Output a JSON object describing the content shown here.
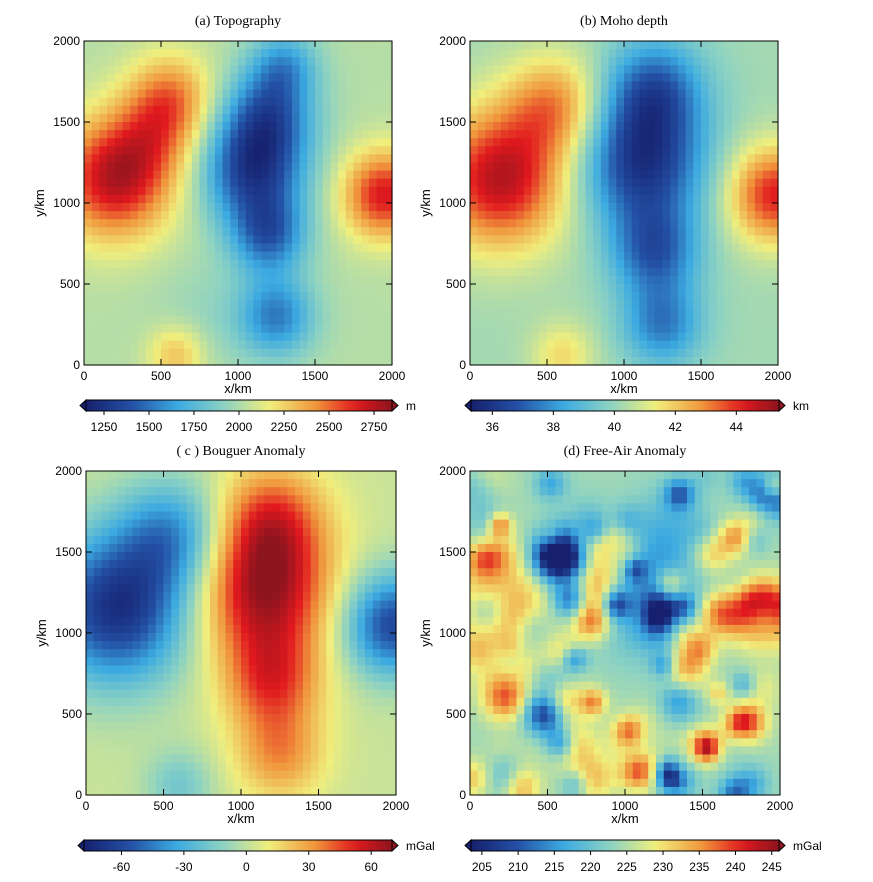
{
  "chart_data": [
    {
      "type": "heatmap",
      "title": "(a) Topography",
      "xlabel": "x/km",
      "ylabel": "y/km",
      "xlim": [
        0,
        2000
      ],
      "ylim": [
        0,
        2000
      ],
      "xticks": [
        "0",
        "500",
        "1000",
        "1500",
        "2000"
      ],
      "yticks": [
        "0",
        "500",
        "1000",
        "1500",
        "2000"
      ],
      "colorbar": {
        "unit": "m",
        "range": [
          1150,
          2850
        ],
        "ticks": [
          1250,
          1500,
          1750,
          2000,
          2250,
          2500,
          2750
        ]
      },
      "field": {
        "base": 2020,
        "blobs": [
          [
            200,
            1150,
            720,
            260
          ],
          [
            560,
            1650,
            420,
            190
          ],
          [
            450,
            1400,
            250,
            200
          ],
          [
            1100,
            1200,
            -700,
            230
          ],
          [
            1200,
            1550,
            -520,
            200
          ],
          [
            1200,
            800,
            -520,
            170
          ],
          [
            1250,
            300,
            -480,
            170
          ],
          [
            1300,
            1850,
            -350,
            150
          ],
          [
            1950,
            1050,
            650,
            190
          ],
          [
            600,
            60,
            300,
            130
          ],
          [
            800,
            300,
            -80,
            250
          ]
        ]
      }
    },
    {
      "type": "heatmap",
      "title": "(b) Moho depth",
      "xlabel": "x/km",
      "ylabel": "y/km",
      "xlim": [
        0,
        2000
      ],
      "ylim": [
        0,
        2000
      ],
      "xticks": [
        "0",
        "500",
        "1000",
        "1500",
        "2000"
      ],
      "yticks": [
        "0",
        "500",
        "1000",
        "1500",
        "2000"
      ],
      "colorbar": {
        "unit": "km",
        "range": [
          35.3,
          45.4
        ],
        "ticks": [
          36,
          38,
          40,
          42,
          44
        ]
      },
      "field": {
        "base": 40.2,
        "blobs": [
          [
            200,
            1150,
            4.6,
            300
          ],
          [
            550,
            1600,
            2.6,
            220
          ],
          [
            1120,
            1250,
            -4.2,
            280
          ],
          [
            1200,
            1700,
            -3,
            220
          ],
          [
            1200,
            700,
            -3,
            200
          ],
          [
            1250,
            250,
            -2.6,
            180
          ],
          [
            1980,
            1050,
            4,
            210
          ],
          [
            600,
            60,
            1.5,
            140
          ]
        ]
      }
    },
    {
      "type": "heatmap",
      "title": "( c ) Bouguer Anomaly",
      "xlabel": "x/km",
      "ylabel": "y/km",
      "xlim": [
        0,
        2000
      ],
      "ylim": [
        0,
        2000
      ],
      "xticks": [
        "0",
        "500",
        "1000",
        "1500",
        "2000"
      ],
      "yticks": [
        "0",
        "500",
        "1000",
        "1500",
        "2000"
      ],
      "colorbar": {
        "unit": "mGal",
        "range": [
          -78,
          70
        ],
        "ticks": [
          -60,
          -30,
          0,
          30,
          60
        ]
      },
      "field": {
        "base": 2,
        "blobs": [
          [
            200,
            1150,
            -72,
            320
          ],
          [
            550,
            1600,
            -40,
            240
          ],
          [
            1150,
            1250,
            62,
            300
          ],
          [
            1200,
            1700,
            40,
            240
          ],
          [
            1200,
            700,
            40,
            220
          ],
          [
            1250,
            250,
            30,
            200
          ],
          [
            1980,
            1050,
            -62,
            220
          ],
          [
            600,
            60,
            -20,
            150
          ]
        ]
      }
    },
    {
      "type": "heatmap",
      "title": "(d) Free-Air Anomaly",
      "xlabel": "x/km",
      "ylabel": "y/km",
      "xlim": [
        0,
        2000
      ],
      "ylim": [
        0,
        2000
      ],
      "xticks": [
        "0",
        "500",
        "1000",
        "1500",
        "2000"
      ],
      "yticks": [
        "0",
        "500",
        "1000",
        "1500",
        "2000"
      ],
      "colorbar": {
        "unit": "mGal",
        "range": [
          203.5,
          246
        ],
        "ticks": [
          205,
          210,
          215,
          220,
          225,
          230,
          235,
          240,
          245
        ]
      },
      "field": {
        "base": 224,
        "noise": 9,
        "blobs": [
          [
            200,
            1150,
            12,
            220
          ],
          [
            1150,
            1200,
            -9,
            230
          ],
          [
            1250,
            1600,
            -6,
            180
          ],
          [
            1950,
            1100,
            10,
            150
          ],
          [
            800,
            100,
            8,
            100
          ]
        ]
      }
    }
  ]
}
